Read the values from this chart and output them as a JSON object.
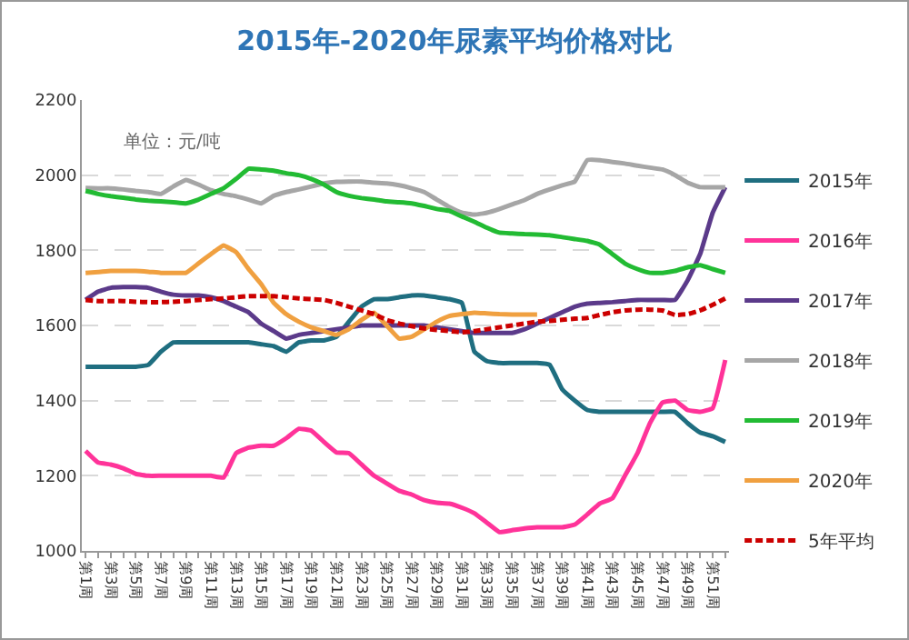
{
  "chart_data": {
    "type": "line",
    "title": "2015年-2020年尿素平均价格对比",
    "categories": [
      "第1周",
      null,
      "第3周",
      null,
      "第5周",
      null,
      "第7周",
      null,
      "第9周",
      null,
      "第11周",
      null,
      "第13周",
      null,
      "第15周",
      null,
      "第17周",
      null,
      "第19周",
      null,
      "第21周",
      null,
      "第23周",
      null,
      "第25周",
      null,
      "第27周",
      null,
      "第29周",
      null,
      "第31周",
      null,
      "第33周",
      null,
      "第35周",
      null,
      "第37周",
      null,
      "第39周",
      null,
      "第41周",
      null,
      "第43周",
      null,
      "第45周",
      null,
      "第47周",
      null,
      "第49周",
      null,
      "第51周",
      null
    ],
    "series": [
      {
        "name": "2015年",
        "color": "#1f6e80",
        "values": [
          1490,
          1490,
          1490,
          1490,
          1490,
          1495,
          1530,
          1555,
          1555,
          1555,
          1555,
          1555,
          1555,
          1555,
          1550,
          1545,
          1530,
          1555,
          1560,
          1560,
          1570,
          1610,
          1650,
          1670,
          1670,
          1675,
          1680,
          1680,
          1675,
          1670,
          1660,
          1530,
          1505,
          1500,
          1500,
          1500,
          1500,
          1495,
          1430,
          1400,
          1375,
          1370,
          1370,
          1370,
          1370,
          1370,
          1370,
          1370,
          1340,
          1315,
          1305,
          1290
        ]
      },
      {
        "name": "2016年",
        "color": "#ff3399",
        "values": [
          1266,
          1235,
          1230,
          1220,
          1205,
          1200,
          1200,
          1200,
          1200,
          1200,
          1200,
          1195,
          1260,
          1275,
          1280,
          1280,
          1300,
          1325,
          1320,
          1290,
          1262,
          1260,
          1230,
          1200,
          1180,
          1160,
          1150,
          1135,
          1128,
          1126,
          1115,
          1100,
          1075,
          1050,
          1055,
          1060,
          1063,
          1063,
          1063,
          1070,
          1097,
          1126,
          1140,
          1200,
          1260,
          1340,
          1395,
          1400,
          1375,
          1370,
          1380,
          1508
        ]
      },
      {
        "name": "2017年",
        "color": "#5b3a8a",
        "values": [
          1668,
          1690,
          1700,
          1702,
          1702,
          1700,
          1690,
          1682,
          1680,
          1680,
          1675,
          1665,
          1650,
          1635,
          1605,
          1585,
          1565,
          1575,
          1580,
          1585,
          1590,
          1595,
          1600,
          1600,
          1600,
          1600,
          1600,
          1600,
          1595,
          1590,
          1585,
          1580,
          1580,
          1580,
          1580,
          1590,
          1605,
          1620,
          1635,
          1650,
          1658,
          1660,
          1662,
          1665,
          1668,
          1668,
          1668,
          1668,
          1720,
          1790,
          1900,
          1968
        ]
      },
      {
        "name": "2018年",
        "color": "#a6a6a6",
        "values": [
          1966,
          1965,
          1965,
          1962,
          1958,
          1955,
          1950,
          1970,
          1987,
          1975,
          1960,
          1950,
          1944,
          1935,
          1925,
          1945,
          1955,
          1962,
          1970,
          1978,
          1982,
          1983,
          1983,
          1980,
          1978,
          1973,
          1965,
          1955,
          1935,
          1915,
          1900,
          1895,
          1900,
          1910,
          1922,
          1934,
          1950,
          1962,
          1973,
          1983,
          2040,
          2040,
          2035,
          2031,
          2025,
          2020,
          2015,
          2000,
          1980,
          1968,
          1968,
          1968
        ]
      },
      {
        "name": "2019年",
        "color": "#22bb33",
        "values": [
          1958,
          1950,
          1944,
          1940,
          1935,
          1932,
          1930,
          1928,
          1925,
          1935,
          1950,
          1965,
          1990,
          2017,
          2015,
          2012,
          2005,
          2000,
          1990,
          1975,
          1955,
          1945,
          1939,
          1935,
          1930,
          1928,
          1925,
          1918,
          1910,
          1905,
          1890,
          1876,
          1860,
          1847,
          1845,
          1843,
          1842,
          1840,
          1835,
          1830,
          1825,
          1815,
          1790,
          1765,
          1750,
          1740,
          1740,
          1745,
          1755,
          1760,
          1750,
          1740
        ]
      },
      {
        "name": "2020年",
        "color": "#f0a040",
        "values": [
          1740,
          1742,
          1745,
          1745,
          1745,
          1743,
          1740,
          1740,
          1740,
          1765,
          1790,
          1813,
          1795,
          1750,
          1710,
          1660,
          1630,
          1610,
          1595,
          1585,
          1575,
          1590,
          1615,
          1634,
          1600,
          1565,
          1570,
          1590,
          1610,
          1625,
          1630,
          1634,
          1632,
          1630,
          1629,
          1629,
          1629,
          null,
          null,
          null,
          null,
          null,
          null,
          null,
          null,
          null,
          null,
          null,
          null,
          null,
          null,
          null
        ]
      },
      {
        "name": "5年平均",
        "color": "#cc0000",
        "line_style": "dashed",
        "values": [
          1668,
          1665,
          1665,
          1665,
          1663,
          1662,
          1662,
          1663,
          1665,
          1668,
          1670,
          1672,
          1675,
          1678,
          1678,
          1678,
          1675,
          1672,
          1670,
          1668,
          1660,
          1650,
          1640,
          1630,
          1615,
          1605,
          1598,
          1592,
          1588,
          1585,
          1582,
          1585,
          1590,
          1595,
          1600,
          1605,
          1610,
          1612,
          1615,
          1618,
          1620,
          1628,
          1635,
          1640,
          1642,
          1642,
          1640,
          1628,
          1630,
          1640,
          1655,
          1672
        ]
      }
    ],
    "ylim": [
      1000,
      2200
    ],
    "yticks": [
      1000,
      1200,
      1400,
      1600,
      1800,
      2000,
      2200
    ],
    "grid": "y",
    "legend": "right",
    "marker": "none",
    "annotations": [
      "单位：元/吨"
    ]
  }
}
